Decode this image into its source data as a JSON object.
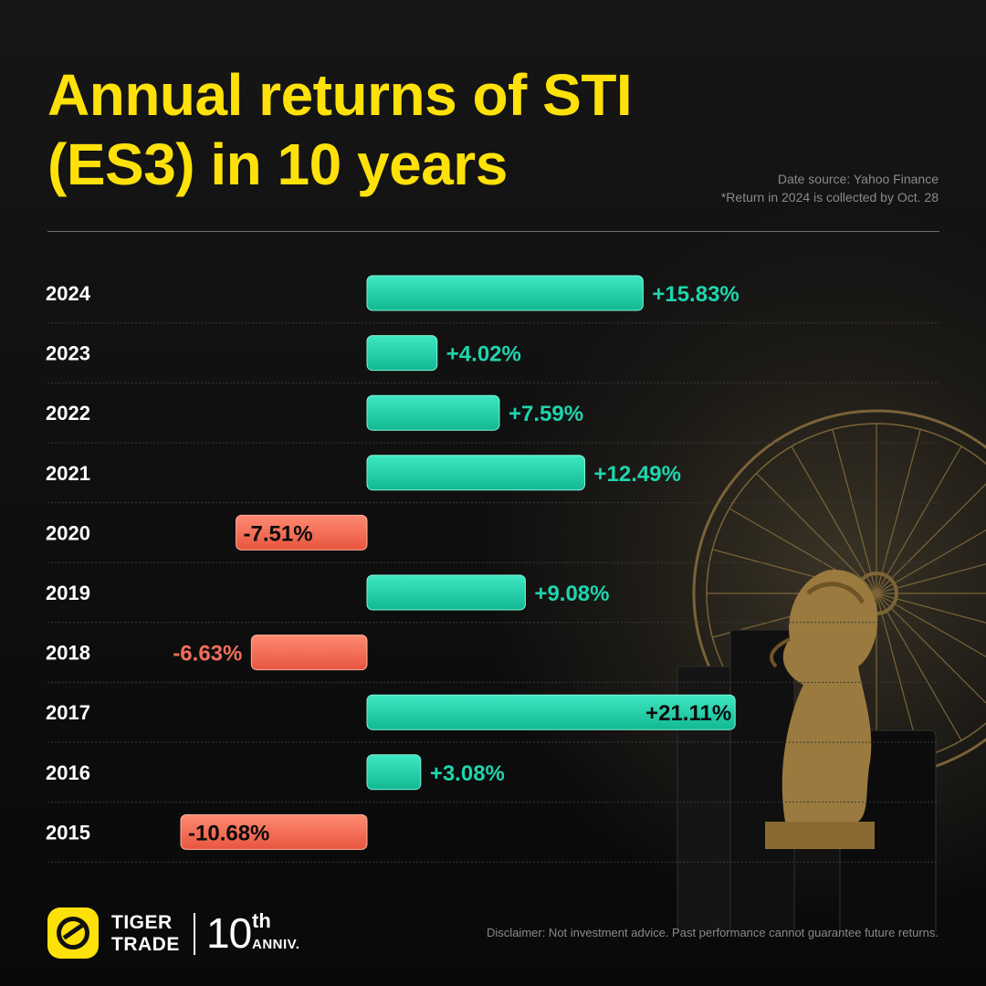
{
  "title": {
    "line1": "Annual returns of STI",
    "line2": "(ES3) in 10 years"
  },
  "source": {
    "line1": "Date source: Yahoo Finance",
    "line2": "*Return in 2024 is collected by Oct. 28"
  },
  "colors": {
    "positive": "#1fd5ae",
    "negative": "#f0705b",
    "title": "#ffe10a",
    "accent_gold": "#a8884e"
  },
  "chart_data": {
    "type": "bar",
    "orientation": "horizontal",
    "categories": [
      "2024",
      "2023",
      "2022",
      "2021",
      "2020",
      "2019",
      "2018",
      "2017",
      "2016",
      "2015"
    ],
    "values": [
      15.83,
      4.02,
      7.59,
      12.49,
      -7.51,
      9.08,
      -6.63,
      21.11,
      3.08,
      -10.68
    ],
    "value_labels": [
      "+15.83%",
      "+4.02%",
      "+7.59%",
      "+12.49%",
      "-7.51%",
      "+9.08%",
      "-6.63%",
      "+21.11%",
      "+3.08%",
      "-10.68%"
    ],
    "unit": "%",
    "xlim": [
      -12,
      22
    ],
    "grid": false,
    "legend": "none"
  },
  "footer": {
    "logo_icon": "tiger-trade-logo-icon",
    "brand_line1": "TIGER",
    "brand_line2": "TRADE",
    "anniv_number": "10",
    "anniv_suffix": "th",
    "anniv_label": "ANNIV.",
    "disclaimer": "Disclaimer: Not investment advice. Past performance cannot guarantee future returns."
  }
}
